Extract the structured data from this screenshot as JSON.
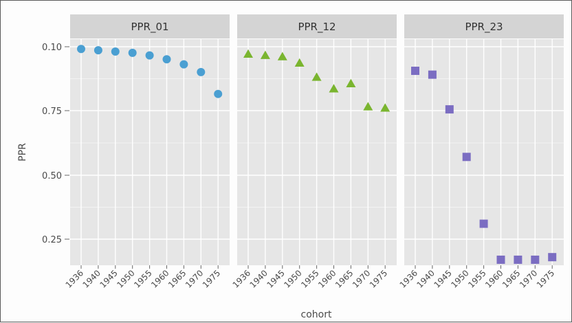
{
  "chart_data": {
    "type": "scatter",
    "xlabel": "cohort",
    "ylabel": "PPR",
    "y_ticks": [
      "0.10",
      "0.75",
      "0.50",
      "0.25"
    ],
    "x_tick_labels": [
      "1936",
      "1940",
      "1945",
      "1950",
      "1955",
      "1960",
      "1965",
      "1970",
      "1975"
    ],
    "grid": true,
    "panels": [
      {
        "name": "PPR_01",
        "marker": "circle",
        "color": "#4a9fd2",
        "x": [
          "1936",
          "1940",
          "1945",
          "1950",
          "1955",
          "1960",
          "1965",
          "1970",
          "1975"
        ],
        "y": [
          0.99,
          0.985,
          0.98,
          0.975,
          0.965,
          0.95,
          0.93,
          0.9,
          0.815
        ]
      },
      {
        "name": "PPR_12",
        "marker": "triangle",
        "color": "#7ab52f",
        "x": [
          "1936",
          "1940",
          "1945",
          "1950",
          "1955",
          "1960",
          "1965",
          "1970",
          "1975"
        ],
        "y": [
          0.97,
          0.965,
          0.96,
          0.935,
          0.88,
          0.835,
          0.855,
          0.765,
          0.76
        ]
      },
      {
        "name": "PPR_23",
        "marker": "square",
        "color": "#7b6dc2",
        "x": [
          "1936",
          "1940",
          "1945",
          "1950",
          "1955",
          "1960",
          "1965",
          "1970",
          "1975"
        ],
        "y": [
          0.905,
          0.89,
          0.755,
          0.57,
          0.31,
          0.17,
          0.17,
          0.17,
          0.18
        ]
      }
    ]
  }
}
